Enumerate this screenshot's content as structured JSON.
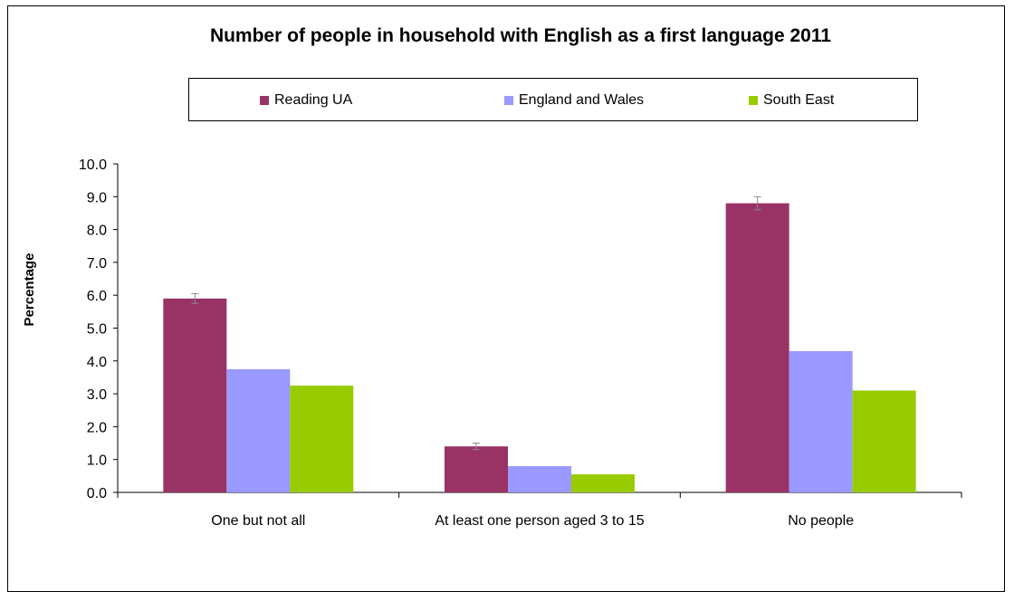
{
  "chart_data": {
    "type": "bar",
    "title": "Number of people in household with English as a first language 2011",
    "xlabel": "",
    "ylabel": "Percentage",
    "ylim": [
      0,
      10
    ],
    "yticks": [
      "0.0",
      "1.0",
      "2.0",
      "3.0",
      "4.0",
      "5.0",
      "6.0",
      "7.0",
      "8.0",
      "9.0",
      "10.0"
    ],
    "categories": [
      "One but not all",
      "At least one person aged 3 to 15",
      "No people"
    ],
    "series": [
      {
        "name": "Reading UA",
        "color": "#993366",
        "values": [
          5.9,
          1.4,
          8.8
        ],
        "error": [
          0.15,
          0.1,
          0.2
        ]
      },
      {
        "name": "England and Wales",
        "color": "#9999ff",
        "values": [
          3.75,
          0.8,
          4.3
        ]
      },
      {
        "name": "South East",
        "color": "#99cc00",
        "values": [
          3.25,
          0.55,
          3.1
        ]
      }
    ],
    "legend_position": "top",
    "grid": false
  }
}
